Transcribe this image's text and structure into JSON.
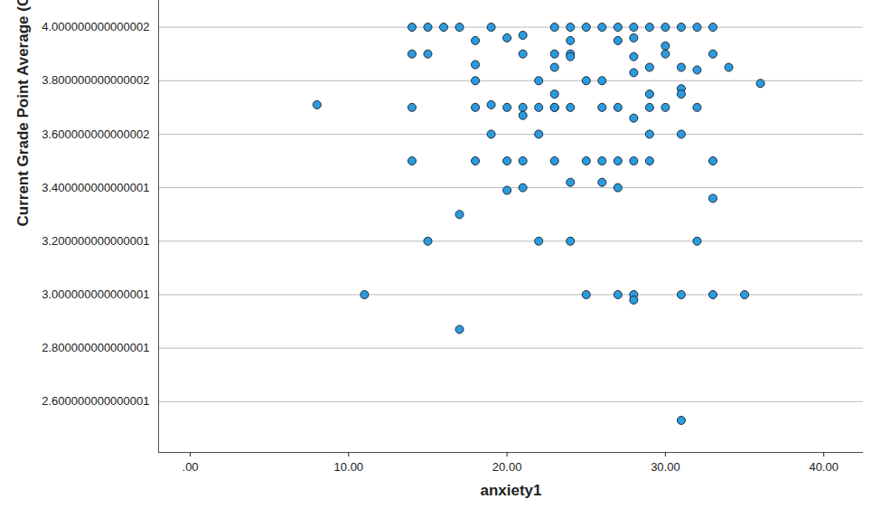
{
  "chart_data": {
    "type": "scatter",
    "x_label": "anxiety1",
    "y_label": "Current Grade Point Average (GPA)",
    "color": "#2b9be0",
    "grid": true,
    "xlim": [
      -2,
      42.5
    ],
    "ylim": [
      2.41,
      4.1
    ],
    "xticks": [
      {
        "value": 0,
        "label": ".00"
      },
      {
        "value": 10,
        "label": "10.00"
      },
      {
        "value": 20,
        "label": "20.00"
      },
      {
        "value": 30,
        "label": "30.00"
      },
      {
        "value": 40,
        "label": "40.00"
      }
    ],
    "yticks": [
      {
        "value": 2.600000000000001,
        "label": "2.600000000000001"
      },
      {
        "value": 2.800000000000001,
        "label": "2.800000000000001"
      },
      {
        "value": 3.000000000000001,
        "label": "3.000000000000001"
      },
      {
        "value": 3.200000000000001,
        "label": "3.200000000000001"
      },
      {
        "value": 3.400000000000001,
        "label": "3.400000000000001"
      },
      {
        "value": 3.600000000000002,
        "label": "3.600000000000002"
      },
      {
        "value": 3.800000000000002,
        "label": "3.800000000000002"
      },
      {
        "value": 4.000000000000002,
        "label": "4.000000000000002"
      }
    ],
    "x": [
      14,
      15,
      16,
      17,
      19,
      23,
      24,
      25,
      26,
      27,
      28,
      29,
      30,
      31,
      32,
      33,
      21,
      20,
      28,
      18,
      24,
      27,
      30,
      14,
      15,
      21,
      23,
      24,
      30,
      33,
      24,
      28,
      18,
      23,
      29,
      31,
      34,
      32,
      28,
      18,
      22,
      25,
      26,
      36,
      31,
      23,
      29,
      31,
      8,
      19,
      14,
      18,
      20,
      21,
      22,
      23,
      23,
      24,
      26,
      27,
      29,
      30,
      32,
      21,
      28,
      19,
      22,
      29,
      31,
      14,
      18,
      20,
      21,
      23,
      25,
      26,
      27,
      28,
      29,
      33,
      24,
      26,
      21,
      27,
      20,
      33,
      17,
      15,
      22,
      24,
      32,
      11,
      25,
      27,
      28,
      31,
      33,
      35,
      28,
      17,
      31
    ],
    "values": [
      4,
      4,
      4,
      4,
      4,
      4,
      4,
      4,
      4,
      4,
      4,
      4,
      4,
      4,
      4,
      4,
      3.97,
      3.96,
      3.96,
      3.95,
      3.95,
      3.95,
      3.93,
      3.9,
      3.9,
      3.9,
      3.9,
      3.9,
      3.9,
      3.9,
      3.89,
      3.89,
      3.86,
      3.85,
      3.85,
      3.85,
      3.85,
      3.84,
      3.83,
      3.8,
      3.8,
      3.8,
      3.8,
      3.79,
      3.77,
      3.75,
      3.75,
      3.75,
      3.71,
      3.71,
      3.7,
      3.7,
      3.7,
      3.7,
      3.7,
      3.7,
      3.7,
      3.7,
      3.7,
      3.7,
      3.7,
      3.7,
      3.7,
      3.67,
      3.66,
      3.6,
      3.6,
      3.6,
      3.6,
      3.5,
      3.5,
      3.5,
      3.5,
      3.5,
      3.5,
      3.5,
      3.5,
      3.5,
      3.5,
      3.5,
      3.42,
      3.42,
      3.4,
      3.4,
      3.39,
      3.36,
      3.3,
      3.2,
      3.2,
      3.2,
      3.2,
      3.0,
      3.0,
      3.0,
      3.0,
      3.0,
      3.0,
      3.0,
      2.98,
      2.87,
      2.53
    ]
  }
}
